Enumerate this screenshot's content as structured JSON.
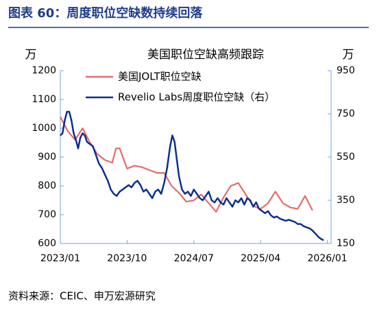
{
  "header": {
    "title": "图表 60：周度职位空缺数持续回落"
  },
  "chart_data": {
    "type": "line",
    "title": "美国职位空缺高频跟踪",
    "y_unit": "万",
    "y2_unit": "万",
    "xlim": [
      0,
      36.5
    ],
    "xticks": [
      {
        "value": 0,
        "label": "2023/01"
      },
      {
        "value": 9,
        "label": "2023/10"
      },
      {
        "value": 18,
        "label": "2024/07"
      },
      {
        "value": 27,
        "label": "2025/04"
      },
      {
        "value": 36,
        "label": "2026/01"
      }
    ],
    "ylim": [
      600,
      1200
    ],
    "yticks": [
      600,
      700,
      800,
      900,
      1000,
      1100,
      1200
    ],
    "y2lim": [
      150,
      950
    ],
    "y2ticks": [
      150,
      350,
      550,
      750,
      950
    ],
    "legend": "top-left",
    "series": [
      {
        "name": "美国JOLT职位空缺",
        "color": "#e36c6c",
        "axis": "y",
        "x": [
          0,
          1,
          2,
          3,
          4,
          5,
          6,
          7,
          7.5,
          8,
          9,
          10,
          11,
          12,
          13,
          14,
          15,
          16,
          17,
          18,
          19,
          20,
          21,
          22,
          23,
          24,
          25,
          26,
          27,
          28,
          29,
          30,
          31,
          32,
          33,
          34
        ],
        "values": [
          1040,
          990,
          960,
          1000,
          950,
          910,
          890,
          880,
          930,
          930,
          860,
          870,
          865,
          855,
          845,
          845,
          800,
          775,
          745,
          750,
          770,
          740,
          710,
          760,
          800,
          810,
          770,
          730,
          720,
          740,
          780,
          740,
          725,
          720,
          765,
          715
        ]
      },
      {
        "name": "Revelio Labs周度职位空缺（右）",
        "color": "#0a2f8f",
        "axis": "y2",
        "x": [
          0,
          0.3,
          0.6,
          0.9,
          1.2,
          1.5,
          1.8,
          2.1,
          2.4,
          2.7,
          3,
          3.3,
          3.6,
          4,
          4.4,
          4.8,
          5.2,
          5.6,
          6,
          6.4,
          6.8,
          7.2,
          7.6,
          8,
          8.4,
          8.8,
          9.2,
          9.6,
          10,
          10.4,
          10.8,
          11.2,
          11.6,
          12,
          12.4,
          12.8,
          13.2,
          13.6,
          14,
          14.4,
          14.8,
          15.1,
          15.4,
          15.7,
          16,
          16.4,
          16.8,
          17.2,
          17.6,
          18,
          18.4,
          18.8,
          19.2,
          19.6,
          20,
          20.4,
          20.8,
          21.2,
          21.6,
          22,
          22.4,
          22.8,
          23.2,
          23.6,
          24,
          24.4,
          24.8,
          25.2,
          25.6,
          26,
          26.4,
          26.8,
          27.2,
          27.6,
          28,
          28.4,
          28.8,
          29.2,
          29.6,
          30,
          30.4,
          30.8,
          31.2,
          31.6,
          32,
          32.4,
          32.8,
          33.2,
          33.6,
          34,
          34.4,
          34.8,
          35.2,
          35.5
        ],
        "values": [
          650,
          660,
          720,
          760,
          760,
          720,
          660,
          630,
          590,
          640,
          660,
          650,
          620,
          610,
          600,
          560,
          520,
          500,
          470,
          440,
          400,
          380,
          370,
          390,
          400,
          410,
          420,
          410,
          430,
          440,
          420,
          390,
          400,
          380,
          360,
          390,
          400,
          380,
          430,
          500,
          600,
          650,
          620,
          540,
          460,
          400,
          380,
          390,
          370,
          400,
          380,
          360,
          350,
          370,
          390,
          350,
          340,
          360,
          340,
          330,
          360,
          340,
          320,
          350,
          340,
          360,
          330,
          360,
          350,
          320,
          340,
          310,
          300,
          290,
          300,
          280,
          270,
          275,
          265,
          260,
          255,
          260,
          255,
          250,
          240,
          240,
          230,
          225,
          220,
          210,
          195,
          180,
          170,
          165
        ]
      }
    ]
  },
  "footer": {
    "source": "资料来源：CEIC、申万宏源研究"
  }
}
